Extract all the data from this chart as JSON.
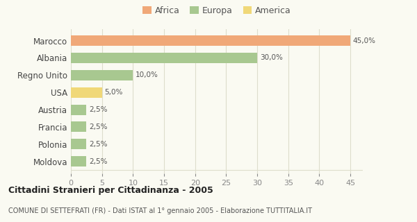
{
  "categories": [
    "Marocco",
    "Albania",
    "Regno Unito",
    "USA",
    "Austria",
    "Francia",
    "Polonia",
    "Moldova"
  ],
  "values": [
    45.0,
    30.0,
    10.0,
    5.0,
    2.5,
    2.5,
    2.5,
    2.5
  ],
  "colors": [
    "#F0A878",
    "#A8C890",
    "#A8C890",
    "#F0D878",
    "#A8C890",
    "#A8C890",
    "#A8C890",
    "#A8C890"
  ],
  "labels": [
    "45,0%",
    "30,0%",
    "10,0%",
    "5,0%",
    "2,5%",
    "2,5%",
    "2,5%",
    "2,5%"
  ],
  "legend": [
    {
      "label": "Africa",
      "color": "#F0A878"
    },
    {
      "label": "Europa",
      "color": "#A8C890"
    },
    {
      "label": "America",
      "color": "#F0D878"
    }
  ],
  "xlim": [
    0,
    47
  ],
  "xticks": [
    0,
    5,
    10,
    15,
    20,
    25,
    30,
    35,
    40,
    45
  ],
  "title": "Cittadini Stranieri per Cittadinanza - 2005",
  "subtitle": "COMUNE DI SETTEFRATI (FR) - Dati ISTAT al 1° gennaio 2005 - Elaborazione TUTTITALIA.IT",
  "background_color": "#fafaf2",
  "grid_color": "#ddddcc"
}
